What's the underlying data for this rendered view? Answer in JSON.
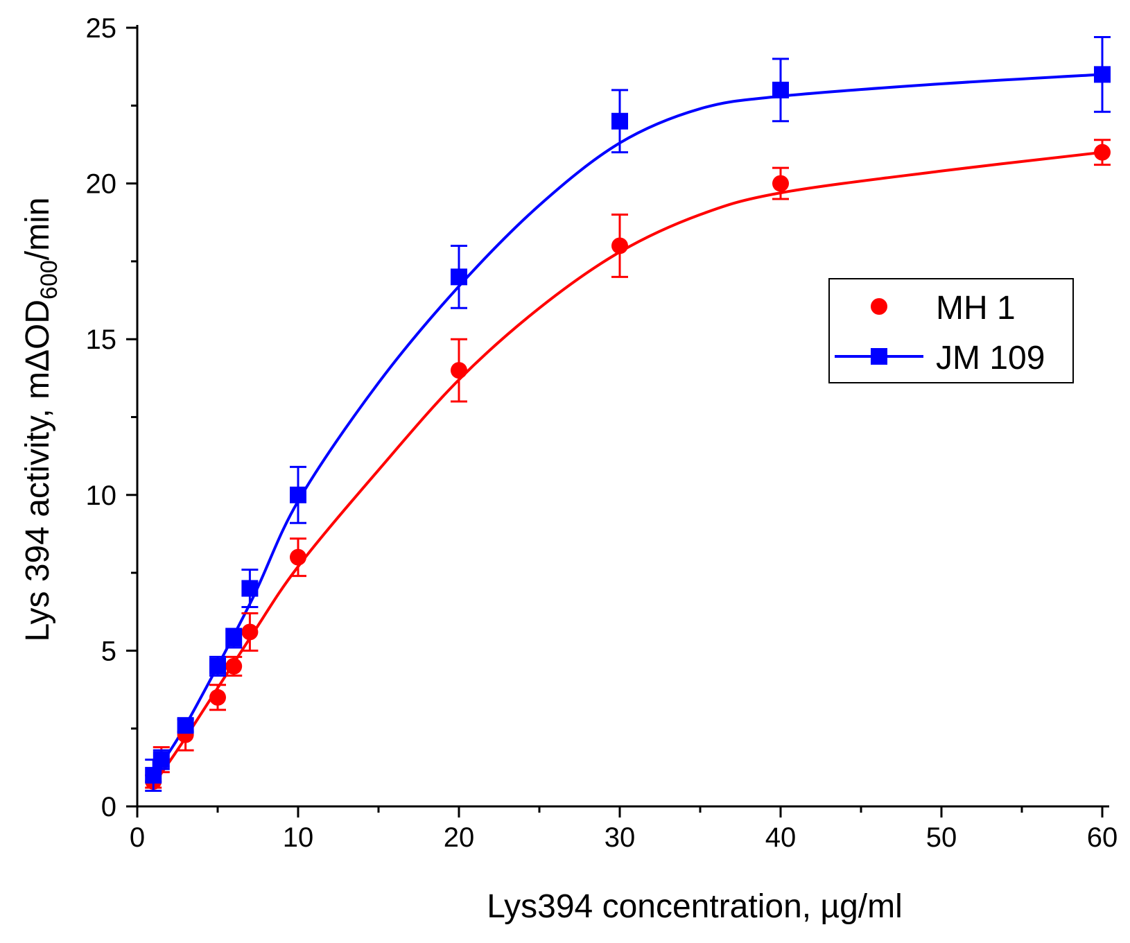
{
  "chart_data": {
    "type": "scatter",
    "xlabel": "Lys394 concentration, µg/ml",
    "ylabel_main": "Lys 394 activity, mΔOD",
    "ylabel_sub": "600",
    "ylabel_tail": "/min",
    "xlim": [
      0,
      60
    ],
    "ylim": [
      0,
      25
    ],
    "xticks": [
      0,
      10,
      20,
      30,
      40,
      50,
      60
    ],
    "yticks": [
      0,
      5,
      10,
      15,
      20,
      25
    ],
    "xtick_labels": [
      "0",
      "10",
      "20",
      "30",
      "40",
      "50",
      "60"
    ],
    "ytick_labels": [
      "0",
      "5",
      "10",
      "15",
      "20",
      "25"
    ],
    "legend_position": "center-right",
    "series": [
      {
        "name": "MH 1",
        "color": "#ff0000",
        "marker": "circle",
        "legend_shows_line": false,
        "x": [
          1,
          1.5,
          3,
          5,
          6,
          7,
          10,
          20,
          30,
          40,
          60
        ],
        "y": [
          0.8,
          1.5,
          2.3,
          3.5,
          4.5,
          5.6,
          8,
          14,
          18,
          20,
          21
        ],
        "err": [
          0.2,
          0.4,
          0.5,
          0.4,
          0.3,
          0.6,
          0.6,
          1.0,
          1.0,
          0.5,
          0.4
        ],
        "fit_x": [
          1,
          3,
          7,
          10,
          15,
          20,
          25,
          30,
          35,
          40,
          50,
          60
        ],
        "fit_y": [
          0.7,
          2.2,
          5.4,
          7.7,
          10.8,
          13.7,
          16.0,
          17.8,
          19.0,
          19.7,
          20.4,
          21.0
        ]
      },
      {
        "name": "JM 109",
        "color": "#0000ff",
        "marker": "square",
        "legend_shows_line": true,
        "x": [
          1,
          1.5,
          3,
          5,
          6,
          7,
          10,
          20,
          30,
          40,
          60
        ],
        "y": [
          1.0,
          1.5,
          2.6,
          4.5,
          5.4,
          7.0,
          10,
          17,
          22,
          23,
          23.5
        ],
        "err": [
          0.5,
          0.3,
          0.2,
          0.3,
          0.3,
          0.6,
          0.9,
          1.0,
          1.0,
          1.0,
          1.2
        ],
        "fit_x": [
          1,
          3,
          7,
          10,
          15,
          20,
          25,
          30,
          35,
          40,
          50,
          60
        ],
        "fit_y": [
          1.0,
          2.6,
          6.5,
          9.8,
          13.6,
          16.7,
          19.3,
          21.3,
          22.4,
          22.8,
          23.2,
          23.5
        ]
      }
    ]
  }
}
